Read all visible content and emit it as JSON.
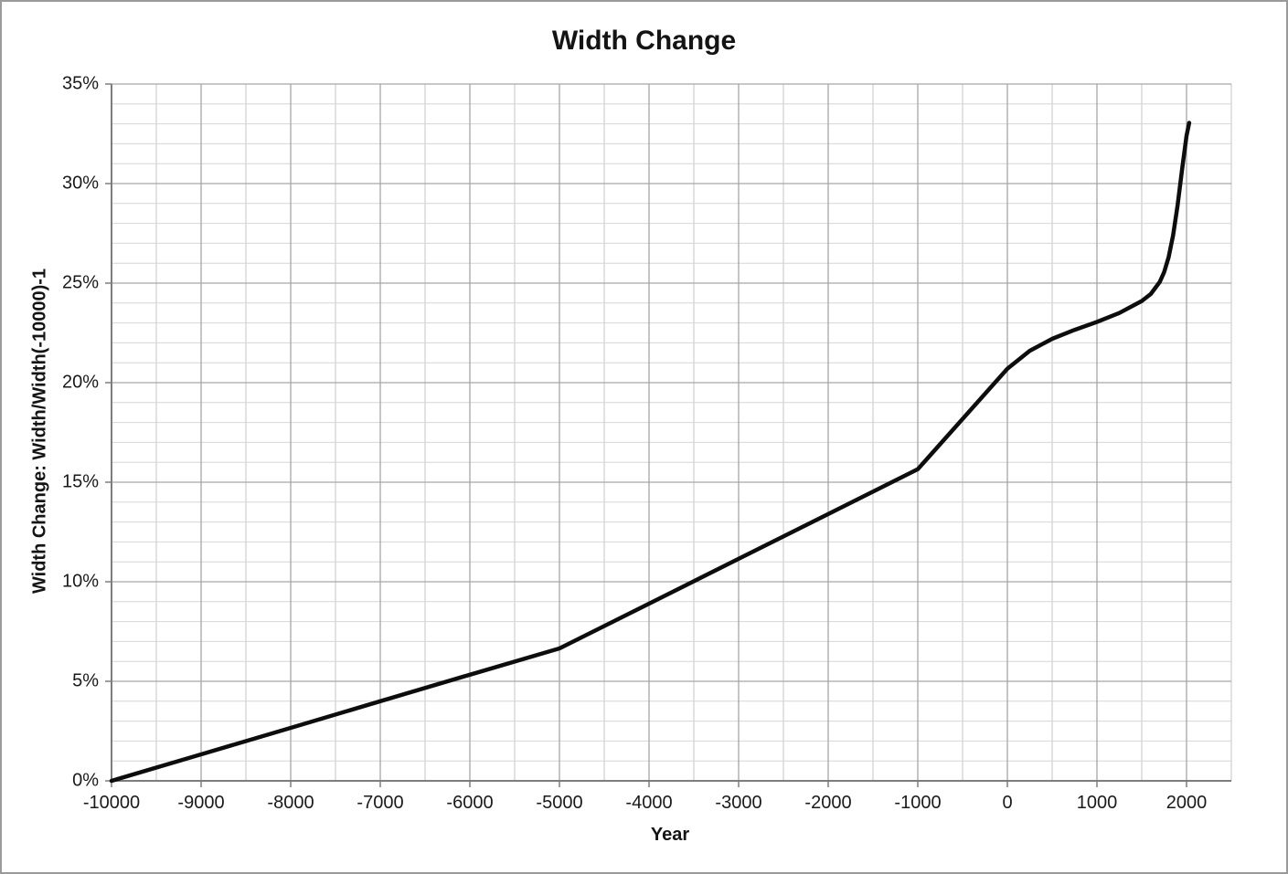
{
  "window": {
    "background": "#ffffff",
    "border_color": "#9a9a9a"
  },
  "chart_data": {
    "type": "line",
    "title": "Width Change",
    "xlabel": "Year",
    "ylabel": "Width Change: Width/Width(-10000)-1",
    "xlim": [
      -10000,
      2500
    ],
    "ylim": [
      0,
      35
    ],
    "x_major_step": 1000,
    "x_minor_step": 500,
    "y_major_step": 5,
    "y_minor_step": 1,
    "grid": {
      "major": true,
      "minor": true
    },
    "legend": "none",
    "x_ticks": [
      -10000,
      -9000,
      -8000,
      -7000,
      -6000,
      -5000,
      -4000,
      -3000,
      -2000,
      -1000,
      0,
      1000,
      2000
    ],
    "x_tick_labels": [
      "-10000",
      "-9000",
      "-8000",
      "-7000",
      "-6000",
      "-5000",
      "-4000",
      "-3000",
      "-2000",
      "-1000",
      "0",
      "1000",
      "2000"
    ],
    "y_ticks": [
      0,
      5,
      10,
      15,
      20,
      25,
      30,
      35
    ],
    "y_tick_labels": [
      "0%",
      "5%",
      "10%",
      "15%",
      "20%",
      "25%",
      "30%",
      "35%"
    ],
    "colors": {
      "series": "#0d0d0d",
      "axis": "#7d7d7d",
      "grid_major": "#a6a6a6",
      "grid_minor_h": "#d6d6d6",
      "grid_minor_v": "#c6c6c6",
      "text": "#1a1a1a",
      "border": "#9a9a9a"
    },
    "series": [
      {
        "name": "Width Change",
        "line_width": 4.5,
        "points": [
          [
            -10000,
            0.0
          ],
          [
            -9000,
            1.33
          ],
          [
            -8000,
            2.66
          ],
          [
            -7000,
            4.0
          ],
          [
            -6000,
            5.33
          ],
          [
            -5000,
            6.65
          ],
          [
            -4000,
            8.9
          ],
          [
            -3000,
            11.15
          ],
          [
            -2000,
            13.4
          ],
          [
            -1000,
            15.65
          ],
          [
            -500,
            18.18
          ],
          [
            0,
            20.7
          ],
          [
            250,
            21.6
          ],
          [
            500,
            22.2
          ],
          [
            750,
            22.65
          ],
          [
            1000,
            23.05
          ],
          [
            1250,
            23.5
          ],
          [
            1500,
            24.1
          ],
          [
            1600,
            24.45
          ],
          [
            1700,
            25.05
          ],
          [
            1750,
            25.55
          ],
          [
            1800,
            26.3
          ],
          [
            1850,
            27.4
          ],
          [
            1900,
            28.9
          ],
          [
            1950,
            30.7
          ],
          [
            2000,
            32.4
          ],
          [
            2030,
            33.05
          ]
        ]
      }
    ]
  }
}
